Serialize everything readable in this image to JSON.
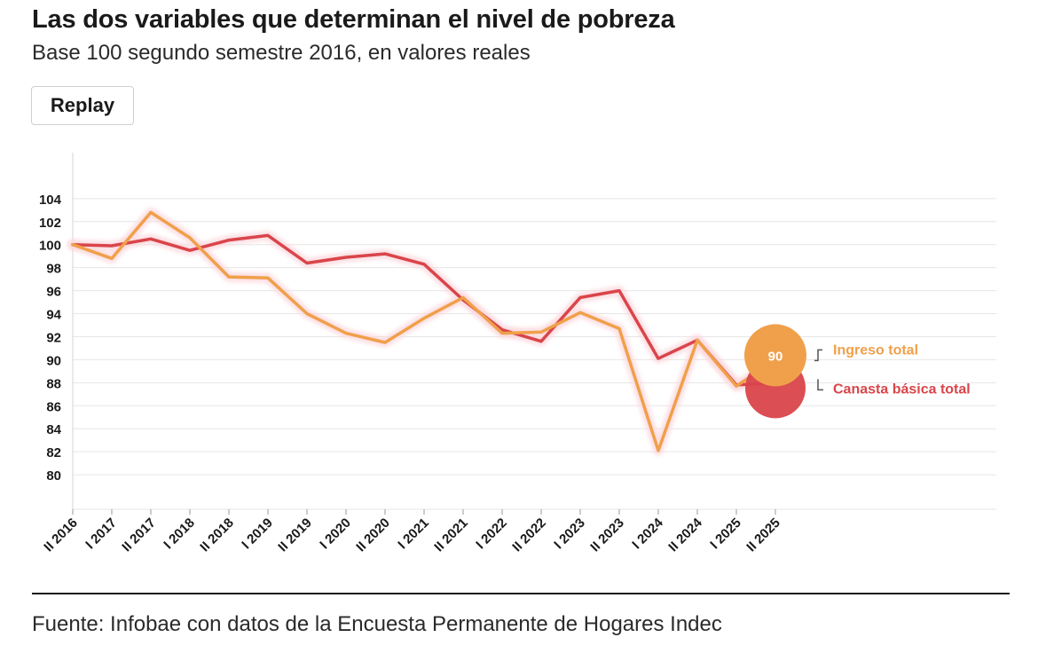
{
  "header": {
    "title": "Las dos variables que determinan el nivel de pobreza",
    "subtitle": "Base 100 segundo semestre 2016, en valores reales",
    "replay_label": "Replay"
  },
  "footer": {
    "source": "Fuente: Infobae con datos de la Encuesta Permanente de Hogares Indec"
  },
  "colors": {
    "ingreso": "#F0A04A",
    "canasta": "#D9454A",
    "glow": "#FBD9DE",
    "grid": "#E6E6E6",
    "text": "#1A1A1A"
  },
  "chart_data": {
    "type": "line",
    "title": "Las dos variables que determinan el nivel de pobreza",
    "subtitle": "Base 100 segundo semestre 2016, en valores reales",
    "categories": [
      "II 2016",
      "I 2017",
      "II 2017",
      "I 2018",
      "II 2018",
      "I 2019",
      "II 2019",
      "I 2020",
      "II 2020",
      "I 2021",
      "II 2021",
      "I 2022",
      "II 2022",
      "I 2023",
      "II 2023",
      "I 2024",
      "II 2024",
      "I 2025",
      "II 2025"
    ],
    "yticks": [
      80,
      82,
      84,
      86,
      88,
      90,
      92,
      94,
      96,
      98,
      100,
      102,
      104
    ],
    "ylim": [
      77,
      108
    ],
    "grid": true,
    "series": [
      {
        "name": "Canasta básica total",
        "values": [
          100.0,
          99.9,
          100.5,
          99.5,
          100.4,
          100.8,
          98.4,
          98.9,
          99.2,
          98.3,
          95.2,
          92.6,
          91.6,
          95.4,
          96.0,
          90.1,
          91.7,
          87.8,
          88.0
        ],
        "end_label": "Canasta básica total"
      },
      {
        "name": "Ingreso total",
        "values": [
          100.0,
          98.8,
          102.8,
          100.6,
          97.2,
          97.1,
          94.0,
          92.3,
          91.5,
          93.6,
          95.4,
          92.3,
          92.4,
          94.1,
          92.7,
          82.1,
          91.7,
          87.7,
          90.0
        ],
        "end_label": "Ingreso total"
      }
    ],
    "end_value_label": "90"
  }
}
